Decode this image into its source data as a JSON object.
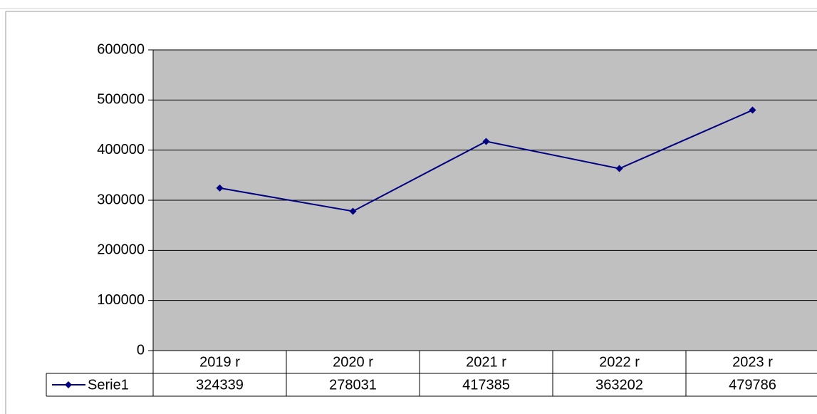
{
  "chart_data": {
    "type": "line",
    "categories": [
      "2019 r",
      "2020 r",
      "2021 r",
      "2022 r",
      "2023 r"
    ],
    "series": [
      {
        "name": "Serie1",
        "color": "#000080",
        "values": [
          324339,
          278031,
          417385,
          363202,
          479786
        ]
      }
    ],
    "ylim": [
      0,
      600000
    ],
    "yticks": [
      0,
      100000,
      200000,
      300000,
      400000,
      500000,
      600000
    ],
    "grid": true,
    "plot_background": "#c0c0c0",
    "data_table": true
  }
}
